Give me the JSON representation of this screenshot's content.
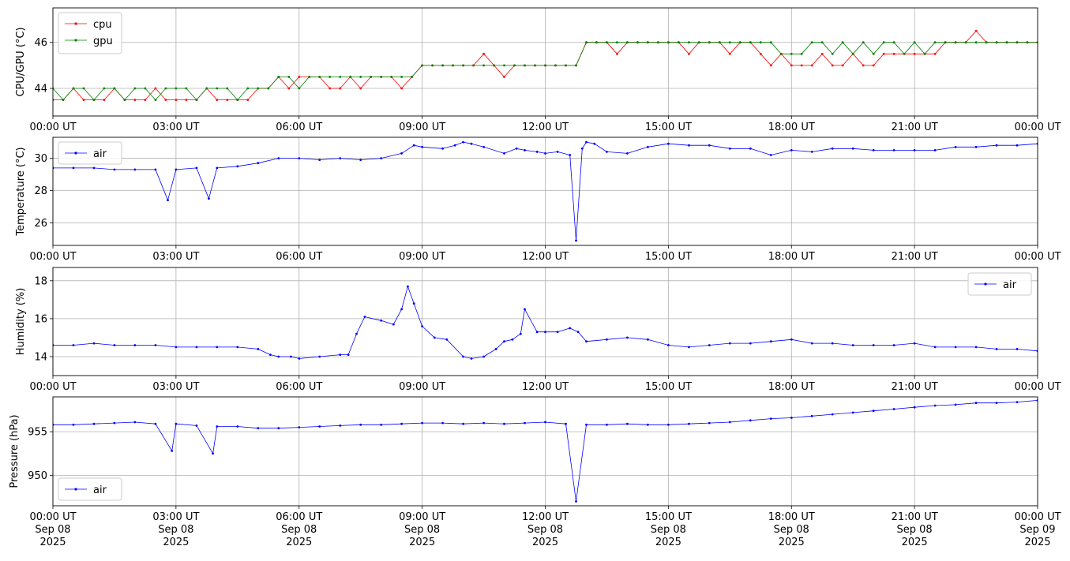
{
  "chart_data": [
    {
      "type": "line",
      "ylabel": "CPU/GPU (°C)",
      "xlim": [
        "2025-09-08T00:00",
        "2025-09-09T00:00"
      ],
      "ylim": [
        42.8,
        47.5
      ],
      "yticks": [
        44,
        46
      ],
      "x_tick_labels": [
        "00:00 UT",
        "03:00 UT",
        "06:00 UT",
        "09:00 UT",
        "12:00 UT",
        "15:00 UT",
        "18:00 UT",
        "21:00 UT",
        "00:00 UT"
      ],
      "grid": true,
      "legend_position": "upper-left",
      "series": [
        {
          "name": "cpu",
          "color": "#ff0000",
          "x_hours": [
            0,
            0.25,
            0.5,
            0.75,
            1,
            1.25,
            1.5,
            1.75,
            2,
            2.25,
            2.5,
            2.75,
            3,
            3.25,
            3.5,
            3.75,
            4,
            4.25,
            4.5,
            4.75,
            5,
            5.25,
            5.5,
            5.75,
            6,
            6.25,
            6.5,
            6.75,
            7,
            7.25,
            7.5,
            7.75,
            8,
            8.25,
            8.5,
            8.75,
            9,
            9.25,
            9.5,
            9.75,
            10,
            10.25,
            10.5,
            10.75,
            11,
            11.25,
            11.5,
            11.75,
            12,
            12.25,
            12.5,
            12.75,
            13,
            13.25,
            13.5,
            13.75,
            14,
            14.25,
            14.5,
            14.75,
            15,
            15.25,
            15.5,
            15.75,
            16,
            16.25,
            16.5,
            16.75,
            17,
            17.25,
            17.5,
            17.75,
            18,
            18.25,
            18.5,
            18.75,
            19,
            19.25,
            19.5,
            19.75,
            20,
            20.25,
            20.5,
            20.75,
            21,
            21.25,
            21.5,
            21.75,
            22,
            22.25,
            22.5,
            22.75,
            23,
            23.25,
            23.5,
            23.75,
            24
          ],
          "values": [
            43.5,
            43.5,
            44,
            43.5,
            43.5,
            43.5,
            44,
            43.5,
            43.5,
            43.5,
            44,
            43.5,
            43.5,
            43.5,
            43.5,
            44,
            43.5,
            43.5,
            43.5,
            43.5,
            44,
            44,
            44.5,
            44,
            44.5,
            44.5,
            44.5,
            44,
            44,
            44.5,
            44,
            44.5,
            44.5,
            44.5,
            44,
            44.5,
            45,
            45,
            45,
            45,
            45,
            45,
            45.5,
            45,
            44.5,
            45,
            45,
            45,
            45,
            45,
            45,
            45,
            46,
            46,
            46,
            45.5,
            46,
            46,
            46,
            46,
            46,
            46,
            45.5,
            46,
            46,
            46,
            45.5,
            46,
            46,
            45.5,
            45,
            45.5,
            45,
            45,
            45,
            45.5,
            45,
            45,
            45.5,
            45,
            45,
            45.5,
            45.5,
            45.5,
            45.5,
            45.5,
            45.5,
            46,
            46,
            46,
            46.5,
            46,
            46,
            46,
            46,
            46,
            46
          ]
        },
        {
          "name": "gpu",
          "color": "#008000",
          "x_hours": [
            0,
            0.25,
            0.5,
            0.75,
            1,
            1.25,
            1.5,
            1.75,
            2,
            2.25,
            2.5,
            2.75,
            3,
            3.25,
            3.5,
            3.75,
            4,
            4.25,
            4.5,
            4.75,
            5,
            5.25,
            5.5,
            5.75,
            6,
            6.25,
            6.5,
            6.75,
            7,
            7.25,
            7.5,
            7.75,
            8,
            8.25,
            8.5,
            8.75,
            9,
            9.25,
            9.5,
            9.75,
            10,
            10.25,
            10.5,
            10.75,
            11,
            11.25,
            11.5,
            11.75,
            12,
            12.25,
            12.5,
            12.75,
            13,
            13.25,
            13.5,
            13.75,
            14,
            14.25,
            14.5,
            14.75,
            15,
            15.25,
            15.5,
            15.75,
            16,
            16.25,
            16.5,
            16.75,
            17,
            17.25,
            17.5,
            17.75,
            18,
            18.25,
            18.5,
            18.75,
            19,
            19.25,
            19.5,
            19.75,
            20,
            20.25,
            20.5,
            20.75,
            21,
            21.25,
            21.5,
            21.75,
            22,
            22.25,
            22.5,
            22.75,
            23,
            23.25,
            23.5,
            23.75,
            24
          ],
          "values": [
            44,
            43.5,
            44,
            44,
            43.5,
            44,
            44,
            43.5,
            44,
            44,
            43.5,
            44,
            44,
            44,
            43.5,
            44,
            44,
            44,
            43.5,
            44,
            44,
            44,
            44.5,
            44.5,
            44,
            44.5,
            44.5,
            44.5,
            44.5,
            44.5,
            44.5,
            44.5,
            44.5,
            44.5,
            44.5,
            44.5,
            45,
            45,
            45,
            45,
            45,
            45,
            45,
            45,
            45,
            45,
            45,
            45,
            45,
            45,
            45,
            45,
            46,
            46,
            46,
            46,
            46,
            46,
            46,
            46,
            46,
            46,
            46,
            46,
            46,
            46,
            46,
            46,
            46,
            46,
            46,
            45.5,
            45.5,
            45.5,
            46,
            46,
            45.5,
            46,
            45.5,
            46,
            45.5,
            46,
            46,
            45.5,
            46,
            45.5,
            46,
            46,
            46,
            46,
            46,
            46,
            46,
            46,
            46,
            46,
            46
          ]
        }
      ]
    },
    {
      "type": "line",
      "ylabel": "Temperature (°C)",
      "xlim": [
        "2025-09-08T00:00",
        "2025-09-09T00:00"
      ],
      "ylim": [
        24.6,
        31.3
      ],
      "yticks": [
        26,
        28,
        30
      ],
      "x_tick_labels": [
        "00:00 UT",
        "03:00 UT",
        "06:00 UT",
        "09:00 UT",
        "12:00 UT",
        "15:00 UT",
        "18:00 UT",
        "21:00 UT",
        "00:00 UT"
      ],
      "grid": true,
      "legend_position": "upper-left",
      "series": [
        {
          "name": "air",
          "color": "#0000ff",
          "x_hours": [
            0,
            0.5,
            1,
            1.5,
            2,
            2.5,
            2.8,
            3,
            3.5,
            3.8,
            4,
            4.5,
            5,
            5.5,
            6,
            6.5,
            7,
            7.5,
            8,
            8.5,
            8.8,
            9,
            9.5,
            9.8,
            10,
            10.2,
            10.5,
            11,
            11.3,
            11.5,
            11.8,
            12,
            12.3,
            12.6,
            12.75,
            12.9,
            13,
            13.2,
            13.5,
            14,
            14.5,
            15,
            15.5,
            16,
            16.5,
            17,
            17.5,
            18,
            18.5,
            19,
            19.5,
            20,
            20.5,
            21,
            21.5,
            22,
            22.5,
            23,
            23.5,
            24
          ],
          "values": [
            29.4,
            29.4,
            29.4,
            29.3,
            29.3,
            29.3,
            27.4,
            29.3,
            29.4,
            27.5,
            29.4,
            29.5,
            29.7,
            30.0,
            30.0,
            29.9,
            30.0,
            29.9,
            30.0,
            30.3,
            30.8,
            30.7,
            30.6,
            30.8,
            31.0,
            30.9,
            30.7,
            30.3,
            30.6,
            30.5,
            30.4,
            30.3,
            30.4,
            30.2,
            24.9,
            30.6,
            31.0,
            30.9,
            30.4,
            30.3,
            30.7,
            30.9,
            30.8,
            30.8,
            30.6,
            30.6,
            30.2,
            30.5,
            30.4,
            30.6,
            30.6,
            30.5,
            30.5,
            30.5,
            30.5,
            30.7,
            30.7,
            30.8,
            30.8,
            30.9
          ]
        }
      ]
    },
    {
      "type": "line",
      "ylabel": "Humidity (%)",
      "xlim": [
        "2025-09-08T00:00",
        "2025-09-09T00:00"
      ],
      "ylim": [
        13.0,
        18.7
      ],
      "yticks": [
        14,
        16,
        18
      ],
      "x_tick_labels": [
        "00:00 UT",
        "03:00 UT",
        "06:00 UT",
        "09:00 UT",
        "12:00 UT",
        "15:00 UT",
        "18:00 UT",
        "21:00 UT",
        "00:00 UT"
      ],
      "grid": true,
      "legend_position": "upper-right",
      "series": [
        {
          "name": "air",
          "color": "#0000ff",
          "x_hours": [
            0,
            0.5,
            1,
            1.5,
            2,
            2.5,
            3,
            3.5,
            4,
            4.5,
            5,
            5.3,
            5.5,
            5.8,
            6,
            6.5,
            7,
            7.2,
            7.4,
            7.6,
            8,
            8.3,
            8.5,
            8.65,
            8.8,
            9,
            9.3,
            9.6,
            10,
            10.2,
            10.5,
            10.8,
            11,
            11.2,
            11.4,
            11.5,
            11.8,
            12,
            12.3,
            12.6,
            12.8,
            13,
            13.5,
            14,
            14.5,
            15,
            15.5,
            16,
            16.5,
            17,
            17.5,
            18,
            18.5,
            19,
            19.5,
            20,
            20.5,
            21,
            21.5,
            22,
            22.5,
            23,
            23.5,
            24
          ],
          "values": [
            14.6,
            14.6,
            14.7,
            14.6,
            14.6,
            14.6,
            14.5,
            14.5,
            14.5,
            14.5,
            14.4,
            14.1,
            14.0,
            14.0,
            13.9,
            14.0,
            14.1,
            14.1,
            15.2,
            16.1,
            15.9,
            15.7,
            16.5,
            17.7,
            16.8,
            15.6,
            15.0,
            14.9,
            14.0,
            13.9,
            14.0,
            14.4,
            14.8,
            14.9,
            15.2,
            16.5,
            15.3,
            15.3,
            15.3,
            15.5,
            15.3,
            14.8,
            14.9,
            15.0,
            14.9,
            14.6,
            14.5,
            14.6,
            14.7,
            14.7,
            14.8,
            14.9,
            14.7,
            14.7,
            14.6,
            14.6,
            14.6,
            14.7,
            14.5,
            14.5,
            14.5,
            14.4,
            14.4,
            14.3
          ]
        }
      ]
    },
    {
      "type": "line",
      "ylabel": "Pressure (hPa)",
      "xlim": [
        "2025-09-08T00:00",
        "2025-09-09T00:00"
      ],
      "ylim": [
        946.5,
        959.0
      ],
      "yticks": [
        950,
        955
      ],
      "x_tick_labels": [
        "00:00 UT\nSep 08\n2025",
        "03:00 UT\nSep 08\n2025",
        "06:00 UT\nSep 08\n2025",
        "09:00 UT\nSep 08\n2025",
        "12:00 UT\nSep 08\n2025",
        "15:00 UT\nSep 08\n2025",
        "18:00 UT\nSep 08\n2025",
        "21:00 UT\nSep 08\n2025",
        "00:00 UT\nSep 09\n2025"
      ],
      "grid": true,
      "legend_position": "lower-left",
      "series": [
        {
          "name": "air",
          "color": "#0000ff",
          "x_hours": [
            0,
            0.5,
            1,
            1.5,
            2,
            2.5,
            2.9,
            3,
            3.5,
            3.9,
            4,
            4.5,
            5,
            5.5,
            6,
            6.5,
            7,
            7.5,
            8,
            8.5,
            9,
            9.5,
            10,
            10.5,
            11,
            11.5,
            12,
            12.5,
            12.75,
            13,
            13.5,
            14,
            14.5,
            15,
            15.5,
            16,
            16.5,
            17,
            17.5,
            18,
            18.5,
            19,
            19.5,
            20,
            20.5,
            21,
            21.5,
            22,
            22.5,
            23,
            23.5,
            24
          ],
          "values": [
            955.8,
            955.8,
            955.9,
            956.0,
            956.1,
            955.9,
            952.8,
            955.9,
            955.7,
            952.5,
            955.6,
            955.6,
            955.4,
            955.4,
            955.5,
            955.6,
            955.7,
            955.8,
            955.8,
            955.9,
            956.0,
            956.0,
            955.9,
            956.0,
            955.9,
            956.0,
            956.1,
            955.9,
            947.0,
            955.8,
            955.8,
            955.9,
            955.8,
            955.8,
            955.9,
            956.0,
            956.1,
            956.3,
            956.5,
            956.6,
            956.8,
            957.0,
            957.2,
            957.4,
            957.6,
            957.8,
            958.0,
            958.1,
            958.3,
            958.3,
            958.4,
            958.6
          ]
        }
      ]
    }
  ]
}
